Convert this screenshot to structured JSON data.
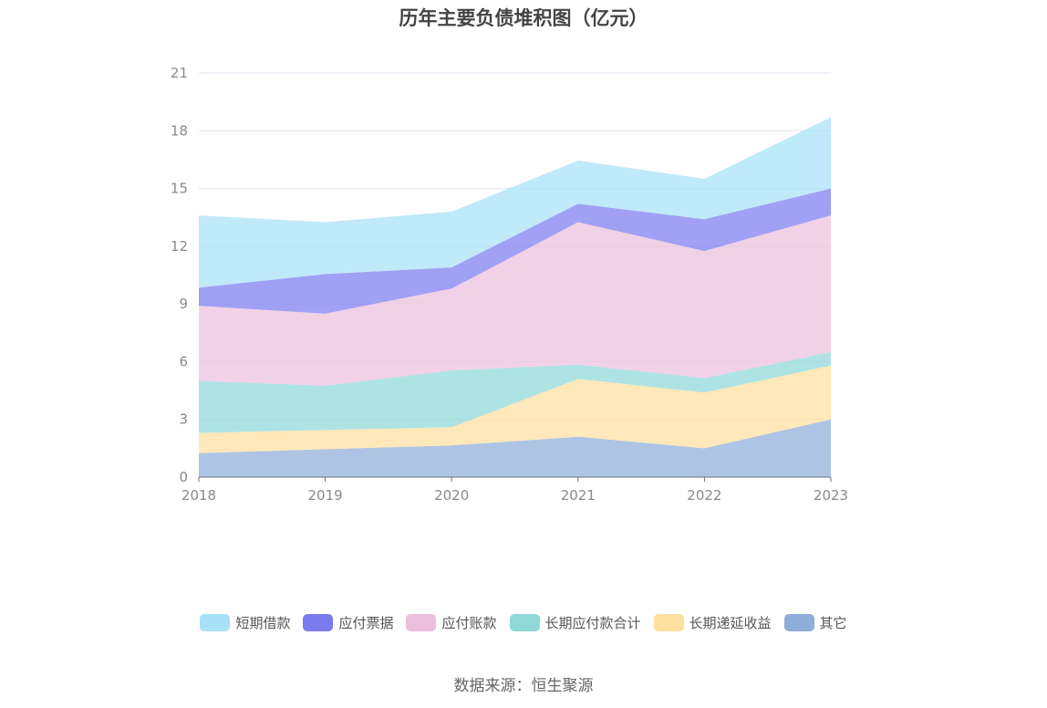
{
  "chart_data": {
    "type": "area",
    "stacked": true,
    "title": "历年主要负债堆积图（亿元）",
    "categories": [
      "2018",
      "2019",
      "2020",
      "2021",
      "2022",
      "2023"
    ],
    "ylim": [
      0,
      21
    ],
    "yticks": [
      0,
      3,
      6,
      9,
      12,
      15,
      18,
      21
    ],
    "grid": true,
    "legend_position": "bottom",
    "series": [
      {
        "name": "其它",
        "color": "#8fadd9",
        "values": [
          1.25,
          1.45,
          1.65,
          2.1,
          1.5,
          3.0
        ]
      },
      {
        "name": "长期递延收益",
        "color": "#ffdf9e",
        "values": [
          1.05,
          1.0,
          0.95,
          3.0,
          2.9,
          2.8
        ]
      },
      {
        "name": "长期应付款合计",
        "color": "#8fd8d8",
        "values": [
          2.7,
          2.3,
          2.95,
          0.75,
          0.75,
          0.7
        ]
      },
      {
        "name": "应付账款",
        "color": "#ebbfdc",
        "values": [
          3.9,
          3.75,
          4.25,
          7.4,
          6.6,
          7.1
        ]
      },
      {
        "name": "应付票据",
        "color": "#7b7bf0",
        "values": [
          0.95,
          2.05,
          1.1,
          0.95,
          1.65,
          1.4
        ]
      },
      {
        "name": "短期借款",
        "color": "#a8e0f8",
        "values": [
          3.75,
          2.7,
          2.9,
          2.25,
          2.1,
          3.7
        ]
      }
    ]
  },
  "legend_order": [
    "短期借款",
    "应付票据",
    "应付账款",
    "长期应付款合计",
    "长期递延收益",
    "其它"
  ],
  "source": "数据来源：恒生聚源"
}
